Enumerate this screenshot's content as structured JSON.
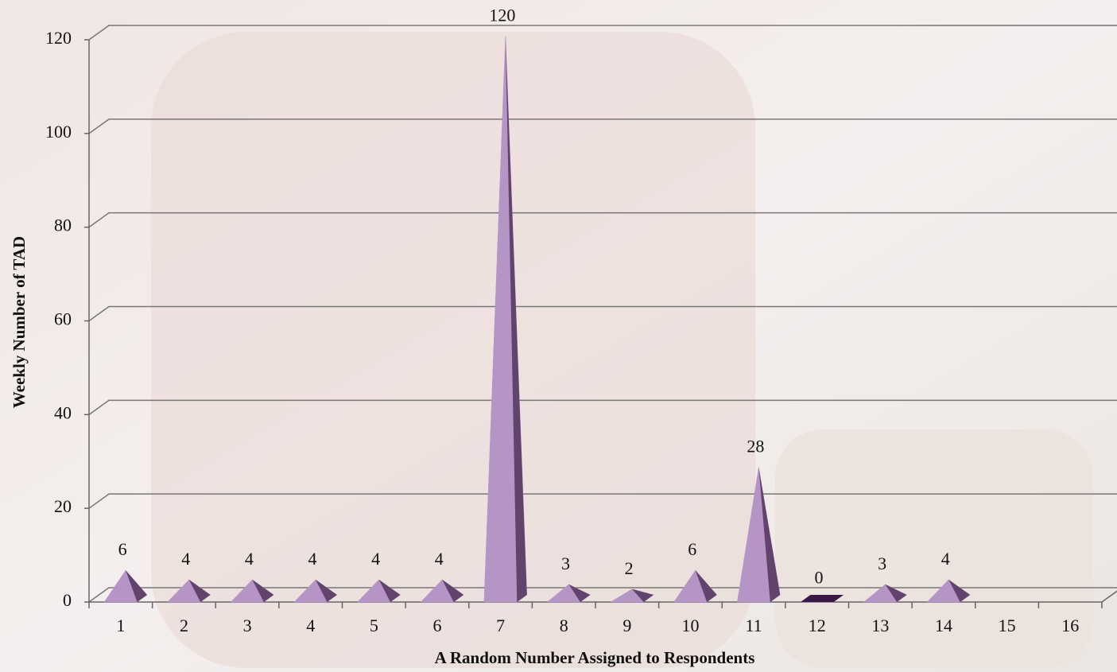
{
  "chart_data": {
    "type": "pyramid3d",
    "x_label": "A Random Number Assigned to Respondents",
    "y_label": "Weekly Number of TAD",
    "categories": [
      "1",
      "2",
      "3",
      "4",
      "5",
      "6",
      "7",
      "8",
      "9",
      "10",
      "11",
      "12",
      "13",
      "14",
      "15",
      "16"
    ],
    "values": [
      6,
      4,
      4,
      4,
      4,
      4,
      120,
      3,
      2,
      6,
      28,
      0,
      3,
      4,
      null,
      null
    ],
    "color": "#b595c6",
    "ylim": [
      0,
      120
    ],
    "yticks": [
      0,
      20,
      40,
      60,
      80,
      100,
      120
    ],
    "grid": true
  }
}
